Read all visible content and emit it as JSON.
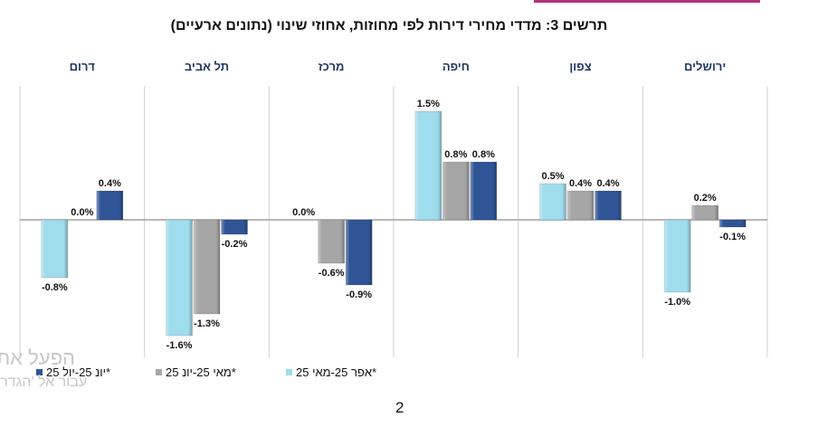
{
  "title": "תרשים 3: מדדי מחירי דירות לפי מחוזות, אחוזי שינוי (נתונים ארעיים)",
  "page_number": "2",
  "watermark": {
    "line1": "הפעל את",
    "line2": "עבור אל 'הגדרו"
  },
  "colors": {
    "series0": "#9fdcec",
    "series1": "#a6a6a6",
    "series2": "#2f5597",
    "region_label": "#1f3864",
    "frame": "#d0d0d0"
  },
  "legend": [
    {
      "label": "יונ 25-יול 25*",
      "color": "#2f5597"
    },
    {
      "label": "מאי 25-יונ 25*",
      "color": "#a6a6a6"
    },
    {
      "label": "אפר 25-מאי 25*",
      "color": "#9fdcec"
    }
  ],
  "chart_data": {
    "type": "bar",
    "title": "תרשים 3: מדדי מחירי דירות לפי מחוזות, אחוזי שינוי (נתונים ארעיים)",
    "categories": [
      "דרום",
      "תל אביב",
      "מרכז",
      "חיפה",
      "צפון",
      "ירושלים"
    ],
    "series": [
      {
        "name": "אפר 25-מאי 25*",
        "values": [
          -0.8,
          -1.6,
          0.0,
          1.5,
          0.5,
          -1.0
        ],
        "labels": [
          "-0.8%",
          "-1.6%",
          "0.0%",
          "1.5%",
          "0.5%",
          "-1.0%"
        ]
      },
      {
        "name": "מאי 25-יונ 25*",
        "values": [
          0.0,
          -1.3,
          -0.6,
          0.8,
          0.4,
          0.2
        ],
        "labels": [
          "0.0%",
          "-1.3%",
          "-0.6%",
          "0.8%",
          "0.4%",
          "0.2%"
        ]
      },
      {
        "name": "יונ 25-יול 25*",
        "values": [
          0.4,
          -0.2,
          -0.9,
          0.8,
          0.4,
          -0.1
        ],
        "labels": [
          "0.4%",
          "-0.2%",
          "-0.9%",
          "0.8%",
          "0.4%",
          "-0.1%"
        ]
      }
    ],
    "ylim": [
      -2.0,
      2.0
    ],
    "xlabel": "",
    "ylabel": "",
    "grid": false,
    "legend_position": "bottom"
  }
}
